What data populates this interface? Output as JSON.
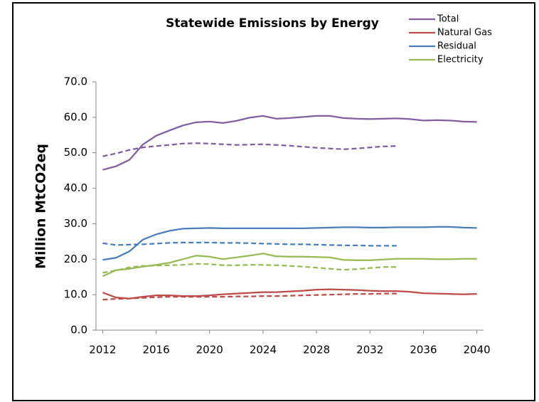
{
  "chart_data": {
    "type": "line",
    "title": "Statewide Emissions by Energy",
    "y_label": "Million MtCO2eq",
    "x": [
      2012,
      2013,
      2014,
      2015,
      2016,
      2017,
      2018,
      2019,
      2020,
      2021,
      2022,
      2023,
      2024,
      2025,
      2026,
      2027,
      2028,
      2029,
      2030,
      2031,
      2032,
      2033,
      2034,
      2035,
      2036,
      2037,
      2038,
      2039,
      2040
    ],
    "xlim": [
      2011.5,
      2040.5
    ],
    "xticks": [
      2012,
      2016,
      2020,
      2024,
      2028,
      2032,
      2036,
      2040
    ],
    "ylim": [
      0,
      70
    ],
    "yticks": [
      {
        "value": 0,
        "label": "0.0"
      },
      {
        "value": 10,
        "label": "10.0"
      },
      {
        "value": 20,
        "label": "20.0"
      },
      {
        "value": 30,
        "label": "30.0"
      },
      {
        "value": 40,
        "label": "40.0"
      },
      {
        "value": 50,
        "label": "50.0"
      },
      {
        "value": 60,
        "label": "60.0"
      },
      {
        "value": 70,
        "label": "70.0"
      }
    ],
    "grid": false,
    "legend": "top-right",
    "series": [
      {
        "name": "Total",
        "color": "#7f5fa0",
        "values": [
          45.2,
          46.2,
          48.0,
          52.3,
          54.8,
          56.3,
          57.7,
          58.6,
          58.8,
          58.4,
          59.0,
          59.9,
          60.4,
          59.6,
          59.8,
          60.1,
          60.4,
          60.4,
          59.8,
          59.6,
          59.5,
          59.6,
          59.7,
          59.5,
          59.1,
          59.2,
          59.1,
          58.8,
          58.7
        ],
        "dashed_values": [
          49.0,
          49.8,
          50.8,
          51.5,
          51.9,
          52.2,
          52.6,
          52.7,
          52.6,
          52.4,
          52.2,
          52.3,
          52.4,
          52.2,
          52.0,
          51.7,
          51.4,
          51.2,
          51.0,
          51.2,
          51.5,
          51.8,
          51.9,
          null,
          null,
          null,
          null,
          null,
          null
        ]
      },
      {
        "name": "Natural Gas",
        "color": "#be4b48",
        "values": [
          10.6,
          9.2,
          8.9,
          9.4,
          9.8,
          9.8,
          9.6,
          9.6,
          9.8,
          10.1,
          10.3,
          10.5,
          10.7,
          10.7,
          10.9,
          11.1,
          11.4,
          11.5,
          11.4,
          11.3,
          11.1,
          11.0,
          11.0,
          10.8,
          10.4,
          10.3,
          10.2,
          10.1,
          10.2
        ],
        "dashed_values": [
          8.6,
          8.8,
          8.9,
          9.1,
          9.3,
          9.4,
          9.4,
          9.4,
          9.4,
          9.4,
          9.5,
          9.5,
          9.6,
          9.6,
          9.7,
          9.8,
          9.9,
          10.0,
          10.1,
          10.2,
          10.2,
          10.3,
          10.3,
          null,
          null,
          null,
          null,
          null,
          null
        ]
      },
      {
        "name": "Residual",
        "color": "#4a7ebb",
        "values": [
          19.8,
          20.4,
          22.2,
          25.5,
          27.0,
          28.0,
          28.6,
          28.7,
          28.8,
          28.7,
          28.7,
          28.7,
          28.7,
          28.7,
          28.7,
          28.7,
          28.8,
          28.9,
          29.0,
          29.0,
          28.9,
          28.9,
          29.0,
          29.0,
          29.0,
          29.1,
          29.1,
          28.9,
          28.8
        ],
        "dashed_values": [
          24.5,
          24.0,
          24.1,
          24.2,
          24.4,
          24.6,
          24.7,
          24.7,
          24.7,
          24.6,
          24.6,
          24.5,
          24.4,
          24.3,
          24.2,
          24.2,
          24.1,
          24.0,
          23.9,
          23.9,
          23.8,
          23.8,
          23.8,
          null,
          null,
          null,
          null,
          null,
          null
        ]
      },
      {
        "name": "Electricity",
        "color": "#98b954",
        "values": [
          15.2,
          16.9,
          17.3,
          17.9,
          18.4,
          19.0,
          20.0,
          21.0,
          20.7,
          20.0,
          20.5,
          21.0,
          21.6,
          20.8,
          20.7,
          20.7,
          20.6,
          20.5,
          19.8,
          19.7,
          19.7,
          19.9,
          20.1,
          20.1,
          20.1,
          20.0,
          20.0,
          20.1,
          20.1
        ],
        "dashed_values": [
          16.2,
          16.8,
          17.7,
          18.1,
          18.2,
          18.3,
          18.4,
          18.7,
          18.6,
          18.3,
          18.3,
          18.4,
          18.4,
          18.3,
          18.1,
          17.9,
          17.6,
          17.3,
          17.0,
          17.2,
          17.5,
          17.8,
          17.8,
          null,
          null,
          null,
          null,
          null,
          null
        ]
      }
    ]
  }
}
